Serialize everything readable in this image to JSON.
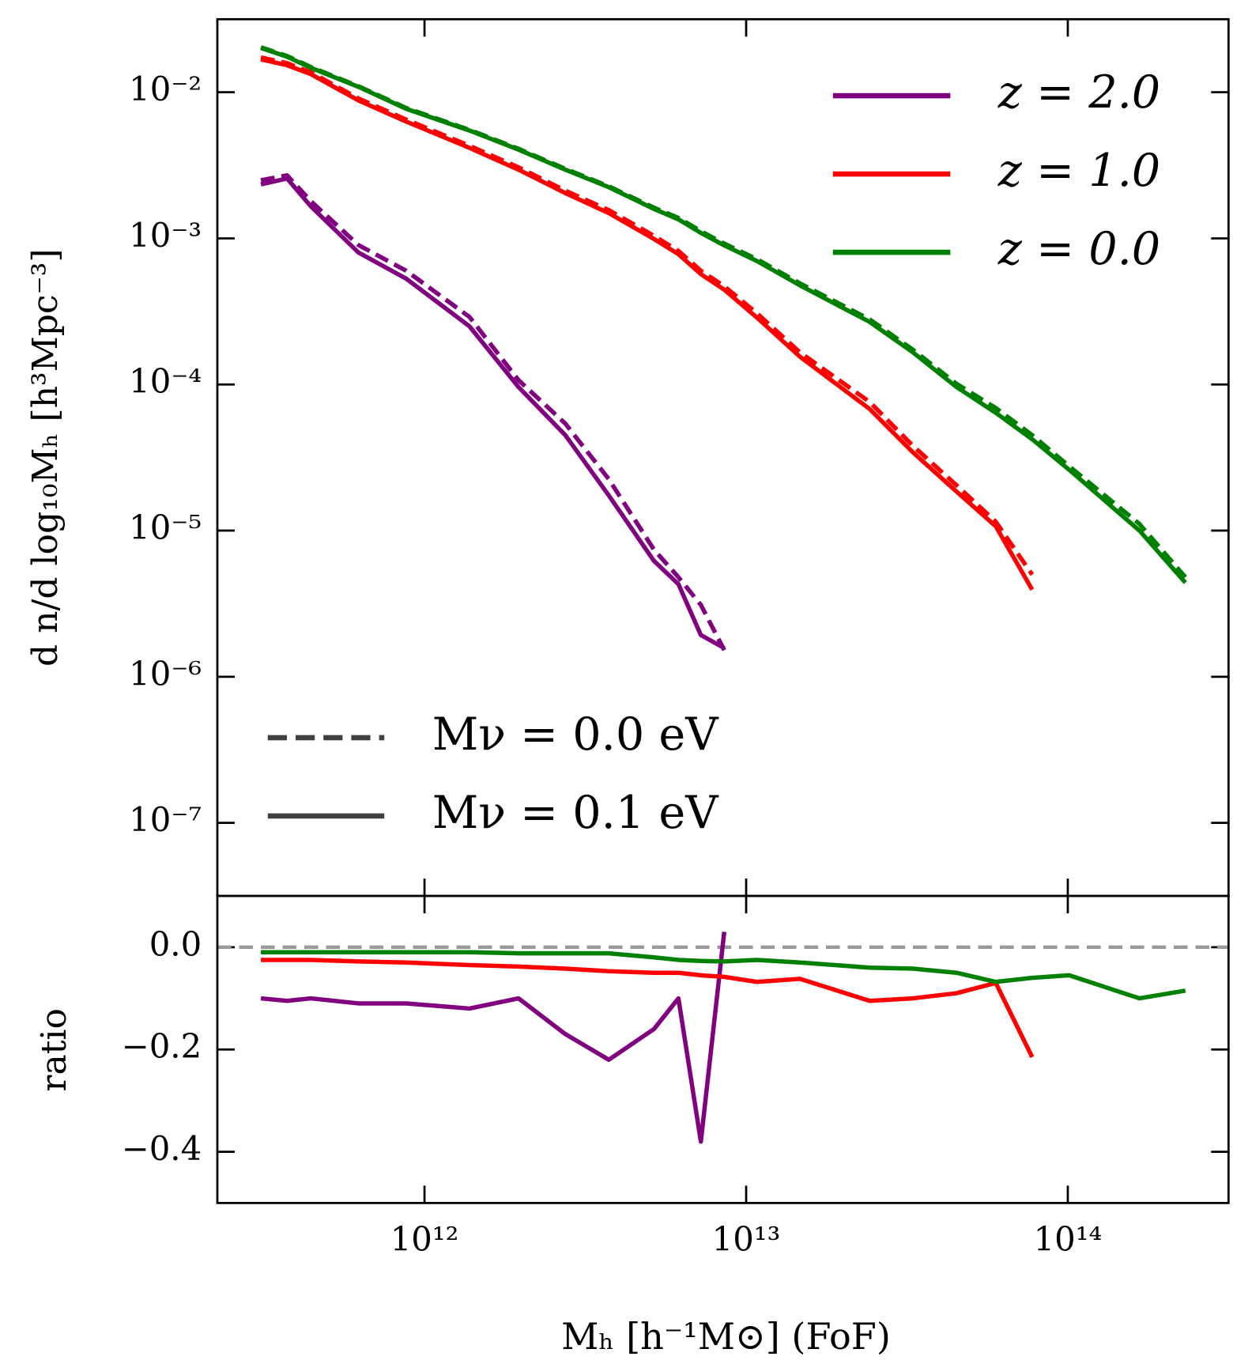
{
  "chart_data": [
    {
      "type": "line",
      "yscale": "log",
      "xscale": "log",
      "ylabel": "d n/d log₁₀Mₕ [h³Mpc⁻³]",
      "x": [
        310000000000.0,
        374000000000.0,
        443000000000.0,
        623000000000.0,
        877000000000.0,
        1380000000000.0,
        1960000000000.0,
        2740000000000.0,
        3740000000000.0,
        5170000000000.0,
        6160000000000.0,
        7230000000000.0,
        8550000000000.0,
        10800000000000.0,
        14700000000000.0,
        24200000000000.0,
        33000000000000.0,
        45100000000000.0,
        59700000000000.0,
        77500000000000.0,
        101000000000000.0,
        167000000000000.0,
        232000000000000.0
      ],
      "xlim": [
        227000000000.0,
        316000000000000.0
      ],
      "ylim": [
        3.16e-08,
        0.0316
      ],
      "xticks": [
        {
          "value": 1000000000000.0,
          "label": "10¹²"
        },
        {
          "value": 10000000000000.0,
          "label": "10¹³"
        },
        {
          "value": 100000000000000.0,
          "label": "10¹⁴"
        }
      ],
      "yticks": [
        {
          "value": 1e-07,
          "label": "10⁻⁷"
        },
        {
          "value": 1e-06,
          "label": "10⁻⁶"
        },
        {
          "value": 1e-05,
          "label": "10⁻⁵"
        },
        {
          "value": 0.0001,
          "label": "10⁻⁴"
        },
        {
          "value": 0.001,
          "label": "10⁻³"
        },
        {
          "value": 0.01,
          "label": "10⁻²"
        }
      ],
      "styles": [
        {
          "name": "Mν = 0.0 eV",
          "dash": "dashed"
        },
        {
          "name": "Mν = 0.1 eV",
          "dash": "solid"
        }
      ],
      "style_color": "#404040",
      "series": [
        {
          "name": "z = 2.0",
          "color": "#800080",
          "values": [
            0.00234,
            0.00257,
            0.00166,
            0.0008,
            0.00053,
            0.00025,
            9.6e-05,
            4.5e-05,
            1.74e-05,
            6.2e-06,
            4.3e-06,
            1.93e-06,
            1.57e-06,
            null,
            null,
            null,
            null,
            null,
            null,
            null,
            null,
            null,
            null
          ],
          "massless_values": [
            0.0025,
            0.0027,
            0.0018,
            0.0009,
            0.0006,
            0.00029,
            0.000107,
            5.4e-05,
            2.25e-05,
            7.4e-06,
            4.8e-06,
            3.1e-06,
            1.52e-06,
            null,
            null,
            null,
            null,
            null,
            null,
            null,
            null,
            null,
            null
          ]
        },
        {
          "name": "z = 1.0",
          "color": "#ff0000",
          "values": [
            0.0168,
            0.0153,
            0.0133,
            0.0088,
            0.0063,
            0.00416,
            0.00295,
            0.00204,
            0.00149,
            0.00099,
            0.00078,
            0.00057,
            0.000445,
            0.000287,
            0.000155,
            6.8e-05,
            3.43e-05,
            1.85e-05,
            1.07e-05,
            3.94e-06,
            null,
            null,
            null
          ],
          "massless_values": [
            0.0173,
            0.0158,
            0.0137,
            0.00906,
            0.0065,
            0.0043,
            0.00306,
            0.00212,
            0.00156,
            0.00104,
            0.00082,
            0.0006,
            0.00047,
            0.000307,
            0.000166,
            7.6e-05,
            3.8e-05,
            2.04e-05,
            1.15e-05,
            5e-06,
            null,
            null,
            null
          ]
        },
        {
          "name": "z = 0.0",
          "color": "#008000",
          "values": [
            0.0201,
            0.0175,
            0.0147,
            0.0109,
            0.0077,
            0.00547,
            0.00405,
            0.00295,
            0.00224,
            0.00159,
            0.00135,
            0.00109,
            0.000896,
            0.0007,
            0.000477,
            0.000268,
            0.000166,
            9.6e-05,
            6.4e-05,
            4.22e-05,
            2.61e-05,
            1e-05,
            4.4e-06
          ],
          "massless_values": [
            0.0203,
            0.0177,
            0.0149,
            0.011,
            0.0078,
            0.00553,
            0.0041,
            0.00299,
            0.00227,
            0.00162,
            0.00138,
            0.00112,
            0.00092,
            0.00072,
            0.000492,
            0.000279,
            0.000173,
            0.000101,
            6.9e-05,
            4.5e-05,
            2.76e-05,
            1.11e-05,
            4.8e-06
          ]
        }
      ]
    },
    {
      "type": "line",
      "ylabel": "ratio",
      "xlabel": "Mₕ [h⁻¹M⊙] (FoF)",
      "ylim": [
        -0.5,
        0.1
      ],
      "yticks": [
        {
          "value": -0.4,
          "label": "−0.4"
        },
        {
          "value": -0.2,
          "label": "−0.2"
        },
        {
          "value": 0,
          "label": "0.0"
        }
      ],
      "reference_line": {
        "value": 0,
        "color": "#999999"
      },
      "series": [
        {
          "name": "z = 2.0",
          "color": "#800080",
          "values": [
            -0.1,
            -0.105,
            -0.1,
            -0.11,
            -0.11,
            -0.12,
            -0.1,
            -0.17,
            -0.22,
            -0.16,
            -0.1,
            -0.38,
            0.03,
            null,
            null,
            null,
            null,
            null,
            null,
            null,
            null,
            null,
            null
          ]
        },
        {
          "name": "z = 1.0",
          "color": "#ff0000",
          "values": [
            -0.025,
            -0.025,
            -0.025,
            -0.028,
            -0.03,
            -0.035,
            -0.038,
            -0.042,
            -0.047,
            -0.05,
            -0.05,
            -0.055,
            -0.058,
            -0.068,
            -0.062,
            -0.105,
            -0.1,
            -0.09,
            -0.07,
            -0.215,
            null,
            null,
            null
          ]
        },
        {
          "name": "z = 0.0",
          "color": "#008000",
          "values": [
            -0.01,
            -0.01,
            -0.01,
            -0.01,
            -0.01,
            -0.01,
            -0.012,
            -0.012,
            -0.012,
            -0.02,
            -0.025,
            -0.027,
            -0.028,
            -0.025,
            -0.03,
            -0.04,
            -0.042,
            -0.05,
            -0.068,
            -0.06,
            -0.055,
            -0.1,
            -0.085
          ]
        }
      ]
    }
  ]
}
